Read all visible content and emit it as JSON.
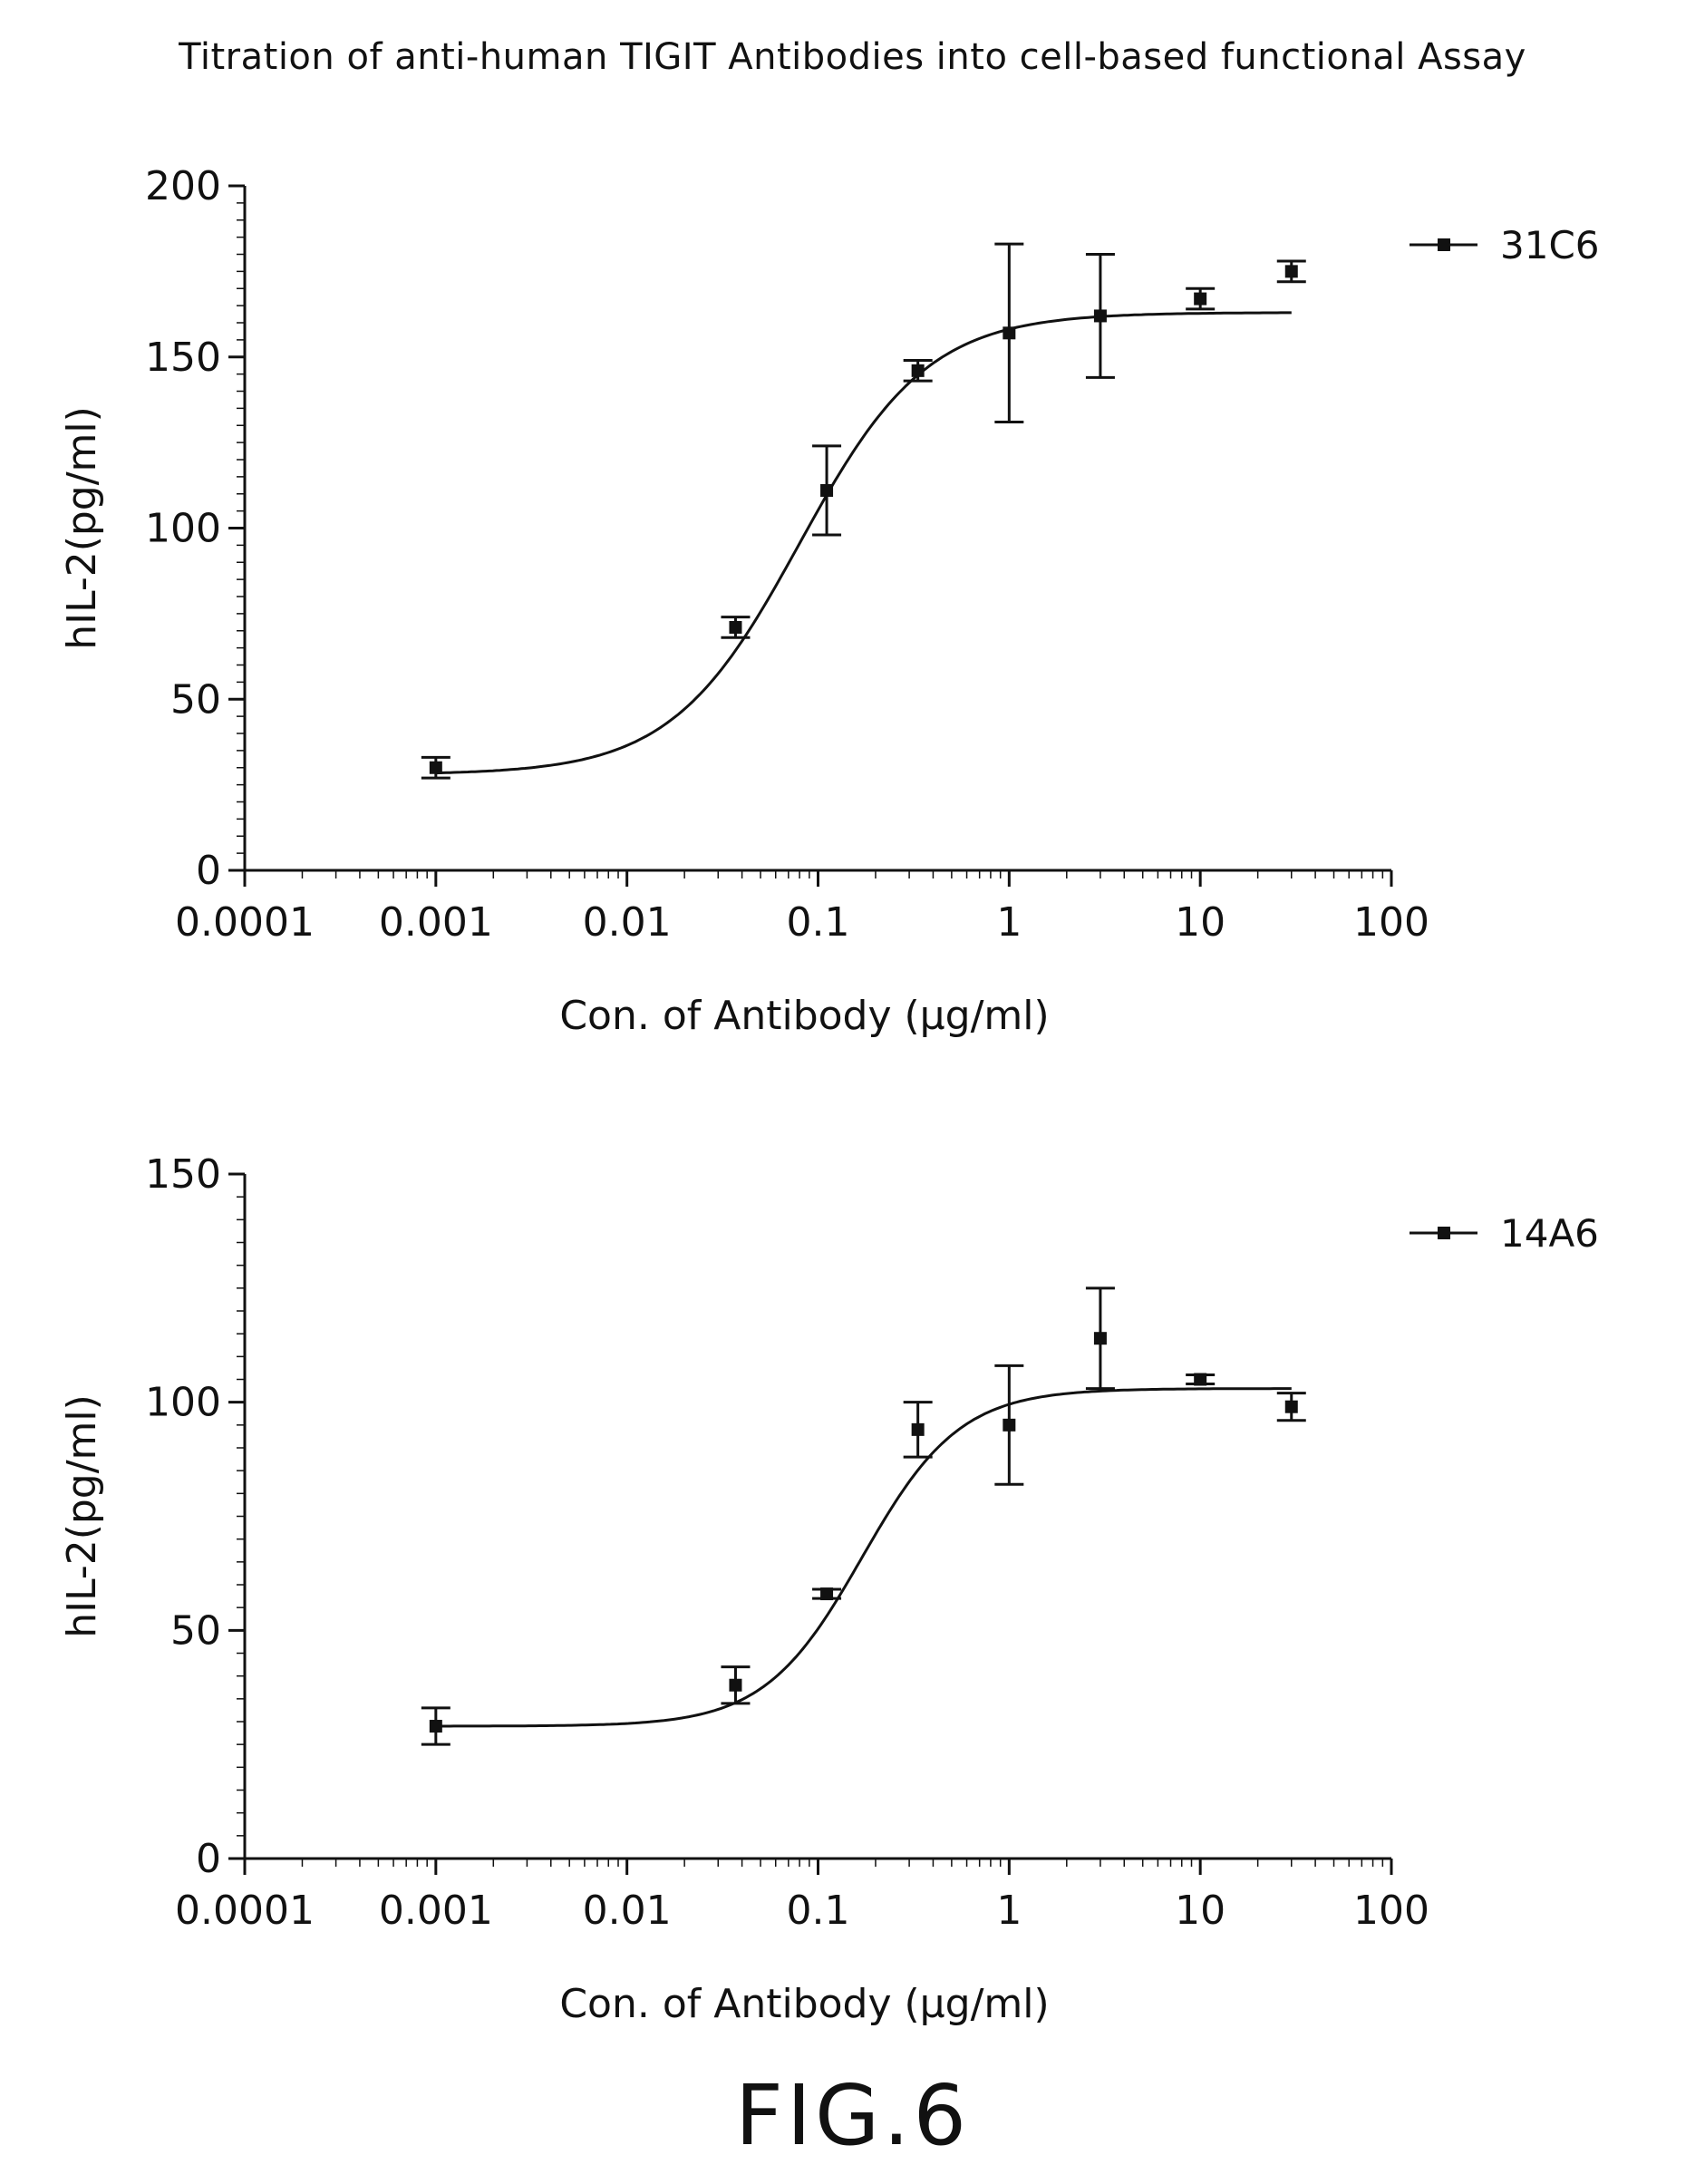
{
  "figure": {
    "title": "Titration of anti-human TIGIT Antibodies into cell-based functional Assay",
    "caption": "FIG.6"
  },
  "chart_data": [
    {
      "type": "scatter",
      "x_scale": "log",
      "xlim": [
        0.0001,
        100
      ],
      "ylim": [
        0,
        200
      ],
      "x_ticks": [
        "0.0001",
        "0.001",
        "0.01",
        "0.1",
        "1",
        "10",
        "100"
      ],
      "y_ticks": [
        "0",
        "50",
        "100",
        "150",
        "200"
      ],
      "xlabel": "Con. of Antibody (μg/ml)",
      "ylabel": "hIL-2(pg/ml)",
      "legend_position": "top-right",
      "series": [
        {
          "name": "31C6",
          "x": [
            0.001,
            0.037,
            0.111,
            0.333,
            1,
            3,
            10,
            30
          ],
          "y": [
            30,
            71,
            111,
            146,
            157,
            162,
            167,
            175
          ],
          "error": [
            3,
            3,
            13,
            3,
            26,
            18,
            3,
            3
          ],
          "fit_curve": {
            "bottom": 28,
            "top": 163,
            "ec50": 0.08,
            "hill": 1.3
          }
        }
      ]
    },
    {
      "type": "scatter",
      "x_scale": "log",
      "xlim": [
        0.0001,
        100
      ],
      "ylim": [
        0,
        150
      ],
      "x_ticks": [
        "0.0001",
        "0.001",
        "0.01",
        "0.1",
        "1",
        "10",
        "100"
      ],
      "y_ticks": [
        "0",
        "50",
        "100",
        "150"
      ],
      "xlabel": "Con. of Antibody (μg/ml)",
      "ylabel": "hIL-2(pg/ml)",
      "legend_position": "top-right",
      "series": [
        {
          "name": "14A6",
          "x": [
            0.001,
            0.037,
            0.111,
            0.333,
            1,
            3,
            10,
            30
          ],
          "y": [
            29,
            38,
            58,
            94,
            95,
            114,
            105,
            99
          ],
          "error": [
            4,
            4,
            1,
            6,
            13,
            11,
            1,
            3
          ],
          "fit_curve": {
            "bottom": 29,
            "top": 103,
            "ec50": 0.17,
            "hill": 1.7
          }
        }
      ]
    }
  ]
}
